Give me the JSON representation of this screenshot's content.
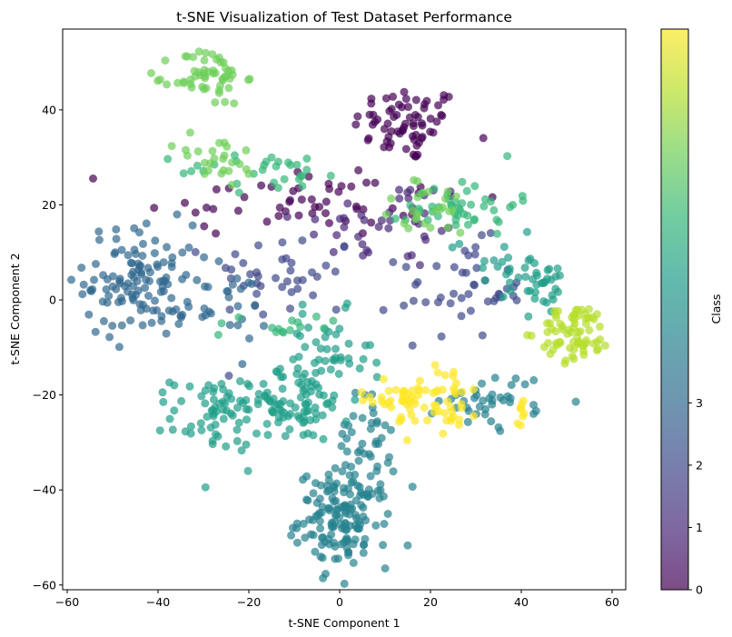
{
  "chart_data": {
    "type": "scatter",
    "title": "t-SNE Visualization of Test Dataset Performance",
    "xlabel": "t-SNE Component 1",
    "ylabel": "t-SNE Component 2",
    "xlim": [
      -61,
      63
    ],
    "ylim": [
      -61,
      57
    ],
    "xticks": [
      -60,
      -40,
      -20,
      0,
      20,
      40,
      60
    ],
    "yticks": [
      -60,
      -40,
      -20,
      0,
      20,
      40
    ],
    "grid": false,
    "point_alpha": 0.7,
    "colormap": "viridis",
    "colorbar": {
      "label": "Class",
      "range": [
        0,
        9
      ],
      "ticks": [
        0,
        1,
        2,
        3
      ],
      "colors": [
        "#440154",
        "#482878",
        "#3e4989",
        "#31688e",
        "#26828e",
        "#1f9e89",
        "#35b779",
        "#6ece58",
        "#b5de2b",
        "#fde725"
      ]
    },
    "clusters": [
      {
        "class": 0,
        "center": [
          15,
          37
        ],
        "spread": [
          6,
          4
        ],
        "count": 70
      },
      {
        "class": 0,
        "center": [
          -8,
          21
        ],
        "spread": [
          18,
          4
        ],
        "count": 55
      },
      {
        "class": 1,
        "center": [
          10,
          16
        ],
        "spread": [
          10,
          5
        ],
        "count": 40
      },
      {
        "class": 2,
        "center": [
          -12,
          5
        ],
        "spread": [
          8,
          5
        ],
        "count": 40
      },
      {
        "class": 2,
        "center": [
          27,
          2
        ],
        "spread": [
          7,
          5
        ],
        "count": 45
      },
      {
        "class": 3,
        "center": [
          -44,
          4
        ],
        "spread": [
          6,
          6
        ],
        "count": 120
      },
      {
        "class": 3,
        "center": [
          -26,
          -2
        ],
        "spread": [
          5,
          4
        ],
        "count": 25
      },
      {
        "class": 4,
        "center": [
          1,
          -46
        ],
        "spread": [
          5,
          5
        ],
        "count": 150
      },
      {
        "class": 4,
        "center": [
          5,
          -30
        ],
        "spread": [
          3,
          5
        ],
        "count": 40
      },
      {
        "class": 4,
        "center": [
          34,
          -21
        ],
        "spread": [
          6,
          3
        ],
        "count": 40
      },
      {
        "class": 5,
        "center": [
          -27,
          -24
        ],
        "spread": [
          5,
          4
        ],
        "count": 70
      },
      {
        "class": 5,
        "center": [
          -10,
          -22
        ],
        "spread": [
          6,
          4
        ],
        "count": 70
      },
      {
        "class": 5,
        "center": [
          -3,
          -13
        ],
        "spread": [
          5,
          5
        ],
        "count": 50
      },
      {
        "class": 5,
        "center": [
          45,
          3
        ],
        "spread": [
          3,
          3
        ],
        "count": 25
      },
      {
        "class": 5,
        "center": [
          36,
          7
        ],
        "spread": [
          6,
          4
        ],
        "count": 25
      },
      {
        "class": 6,
        "center": [
          27,
          20
        ],
        "spread": [
          6,
          3
        ],
        "count": 45
      },
      {
        "class": 6,
        "center": [
          -15,
          27
        ],
        "spread": [
          10,
          2
        ],
        "count": 30
      },
      {
        "class": 6,
        "center": [
          -12,
          -5
        ],
        "spread": [
          8,
          1.5
        ],
        "count": 15
      },
      {
        "class": 7,
        "center": [
          -29,
          47
        ],
        "spread": [
          4,
          3
        ],
        "count": 55
      },
      {
        "class": 7,
        "center": [
          -27,
          29
        ],
        "spread": [
          5,
          3
        ],
        "count": 25
      },
      {
        "class": 7,
        "center": [
          20,
          19
        ],
        "spread": [
          6,
          3
        ],
        "count": 25
      },
      {
        "class": 8,
        "center": [
          52,
          -7
        ],
        "spread": [
          4,
          3
        ],
        "count": 70
      },
      {
        "class": 9,
        "center": [
          23,
          -20
        ],
        "spread": [
          4,
          4
        ],
        "count": 45
      },
      {
        "class": 9,
        "center": [
          12,
          -21
        ],
        "spread": [
          4,
          2
        ],
        "count": 30
      },
      {
        "class": 9,
        "center": [
          40,
          -23
        ],
        "spread": [
          1,
          1.5
        ],
        "count": 8
      }
    ]
  }
}
